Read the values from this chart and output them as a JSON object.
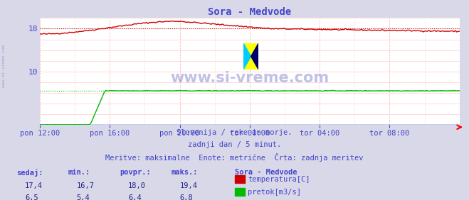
{
  "title": "Sora - Medvode",
  "title_color": "#4444cc",
  "bg_color": "#d8d8e8",
  "plot_bg_color": "#ffffff",
  "grid_color_h": "#ffcccc",
  "grid_color_v": "#ffbbbb",
  "x_labels": [
    "pon 12:00",
    "pon 16:00",
    "pon 20:00",
    "tor 00:00",
    "tor 04:00",
    "tor 08:00"
  ],
  "x_ticks_norm": [
    0.0,
    0.1667,
    0.3333,
    0.5,
    0.6667,
    0.8333
  ],
  "ylim": [
    0,
    20
  ],
  "xlim": [
    0,
    1
  ],
  "temp_avg": 18.0,
  "flow_avg": 6.4,
  "temp_color": "#cc0000",
  "flow_color": "#00bb00",
  "axis_color": "#4444cc",
  "text_color": "#4444cc",
  "watermark": "www.si-vreme.com",
  "footer_line1": "Slovenija / reke in morje.",
  "footer_line2": "zadnji dan / 5 minut.",
  "footer_line3": "Meritve: maksimalne  Enote: metrične  Črta: zadnja meritev",
  "legend_title": "Sora - Medvode",
  "legend_items": [
    "temperatura[C]",
    "pretok[m3/s]"
  ],
  "legend_colors": [
    "#cc0000",
    "#00bb00"
  ],
  "table_headers": [
    "sedaj:",
    "min.:",
    "povpr.:",
    "maks.:"
  ],
  "table_temp": [
    "17,4",
    "16,7",
    "18,0",
    "19,4"
  ],
  "table_flow": [
    "6,5",
    "5,4",
    "6,4",
    "6,8"
  ],
  "sidebar_text": "www.si-vreme.com",
  "n_points": 288
}
